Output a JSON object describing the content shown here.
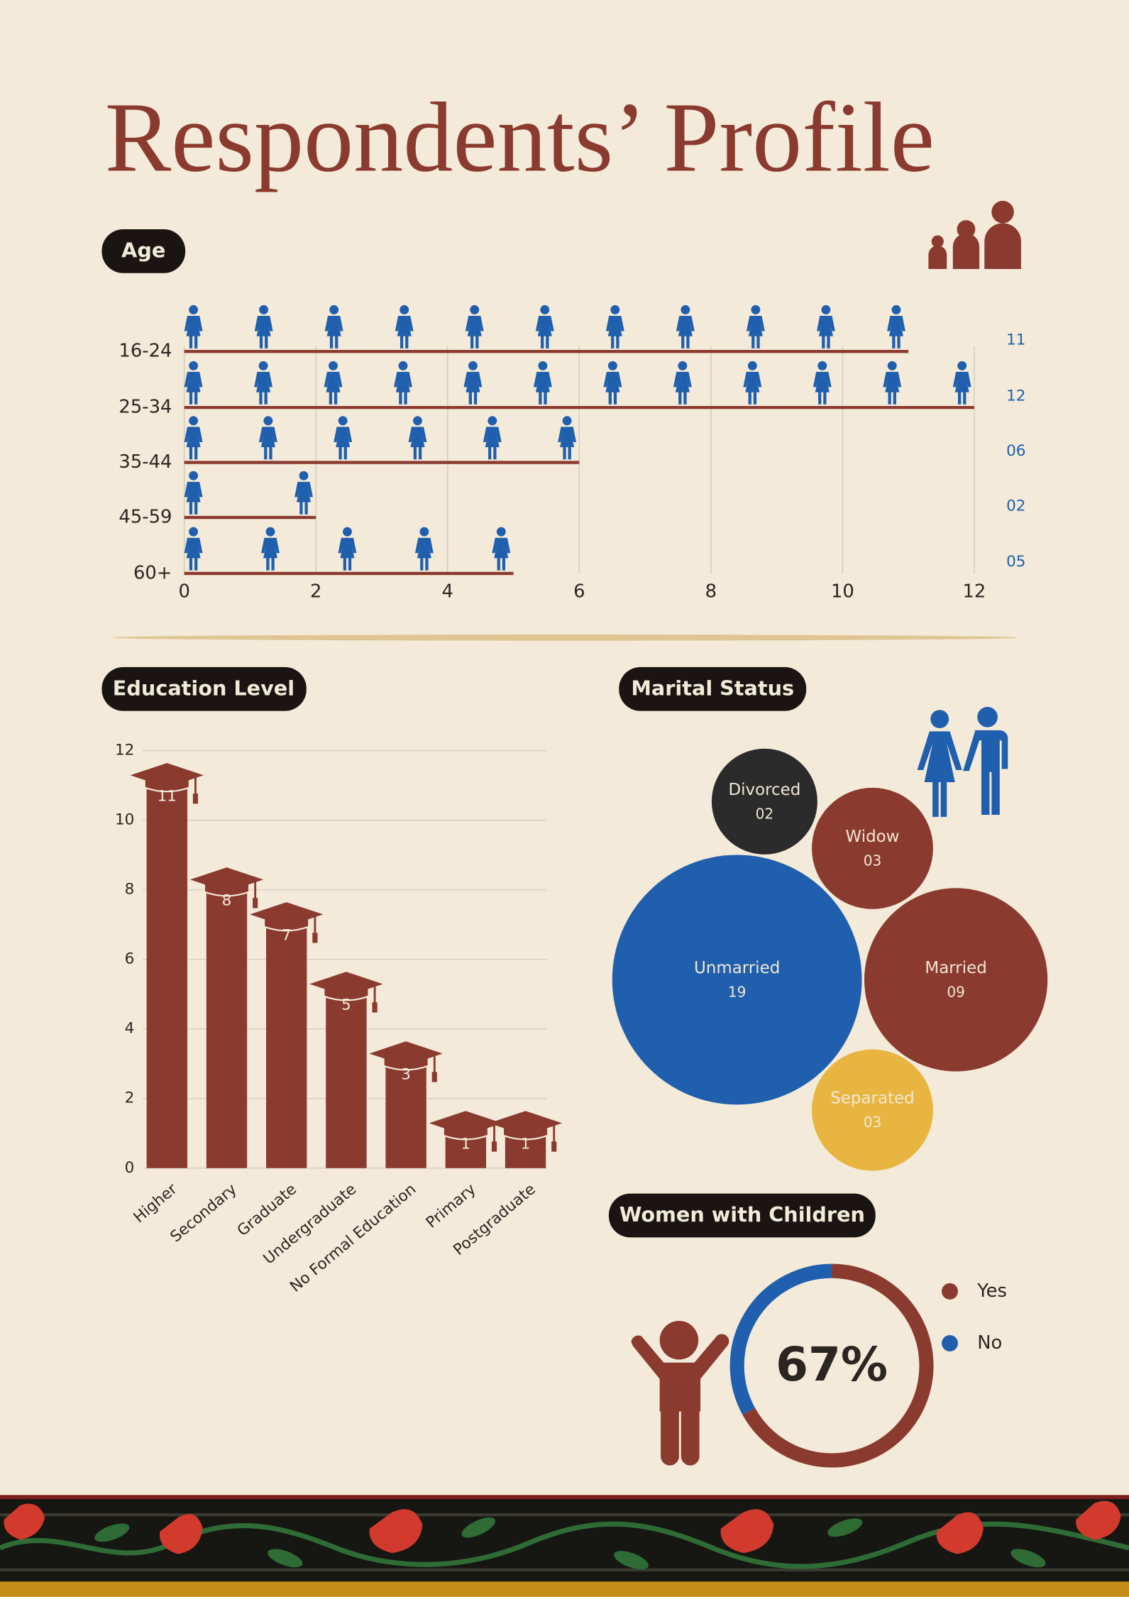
{
  "title": "Respondents’ Profile",
  "chart_data": [
    {
      "type": "pictogram-bar",
      "title": "Age",
      "categories": [
        "16-24",
        "25-34",
        "35-44",
        "45-59",
        "60+"
      ],
      "values": [
        11,
        12,
        6,
        2,
        5
      ],
      "value_labels": [
        "11",
        "12",
        "06",
        "02",
        "05"
      ],
      "xlim": [
        0,
        12
      ],
      "xticks": [
        0,
        2,
        4,
        6,
        8,
        10,
        12
      ],
      "grid": true,
      "color": "#8b3a2f",
      "icon_color": "#1f5fad"
    },
    {
      "type": "bar",
      "title": "Education Level",
      "categories": [
        "Higher",
        "Secondary",
        "Graduate",
        "Undergraduate",
        "No Formal Education",
        "Primary",
        "Postgraduate"
      ],
      "values": [
        11,
        8,
        7,
        5,
        3,
        1,
        1
      ],
      "ylim": [
        0,
        12
      ],
      "yticks": [
        0,
        2,
        4,
        6,
        8,
        10,
        12
      ],
      "grid": true,
      "color": "#8b3a2f"
    },
    {
      "type": "bubble",
      "title": "Marital Status",
      "categories": [
        "Divorced",
        "Widow",
        "Unmarried",
        "Married",
        "Separated"
      ],
      "values": [
        2,
        3,
        19,
        9,
        3
      ],
      "value_labels": [
        "02",
        "03",
        "19",
        "09",
        "03"
      ],
      "colors": [
        "#2b2b2b",
        "#8b3a2f",
        "#1f5fad",
        "#8b3a2f",
        "#e8b640"
      ]
    },
    {
      "type": "donut",
      "title": "Women with Children",
      "categories": [
        "Yes",
        "No"
      ],
      "values": [
        67,
        33
      ],
      "value_labels": [
        "67%",
        null
      ],
      "colors": [
        "#8b3a2f",
        "#1f5fad"
      ]
    }
  ]
}
